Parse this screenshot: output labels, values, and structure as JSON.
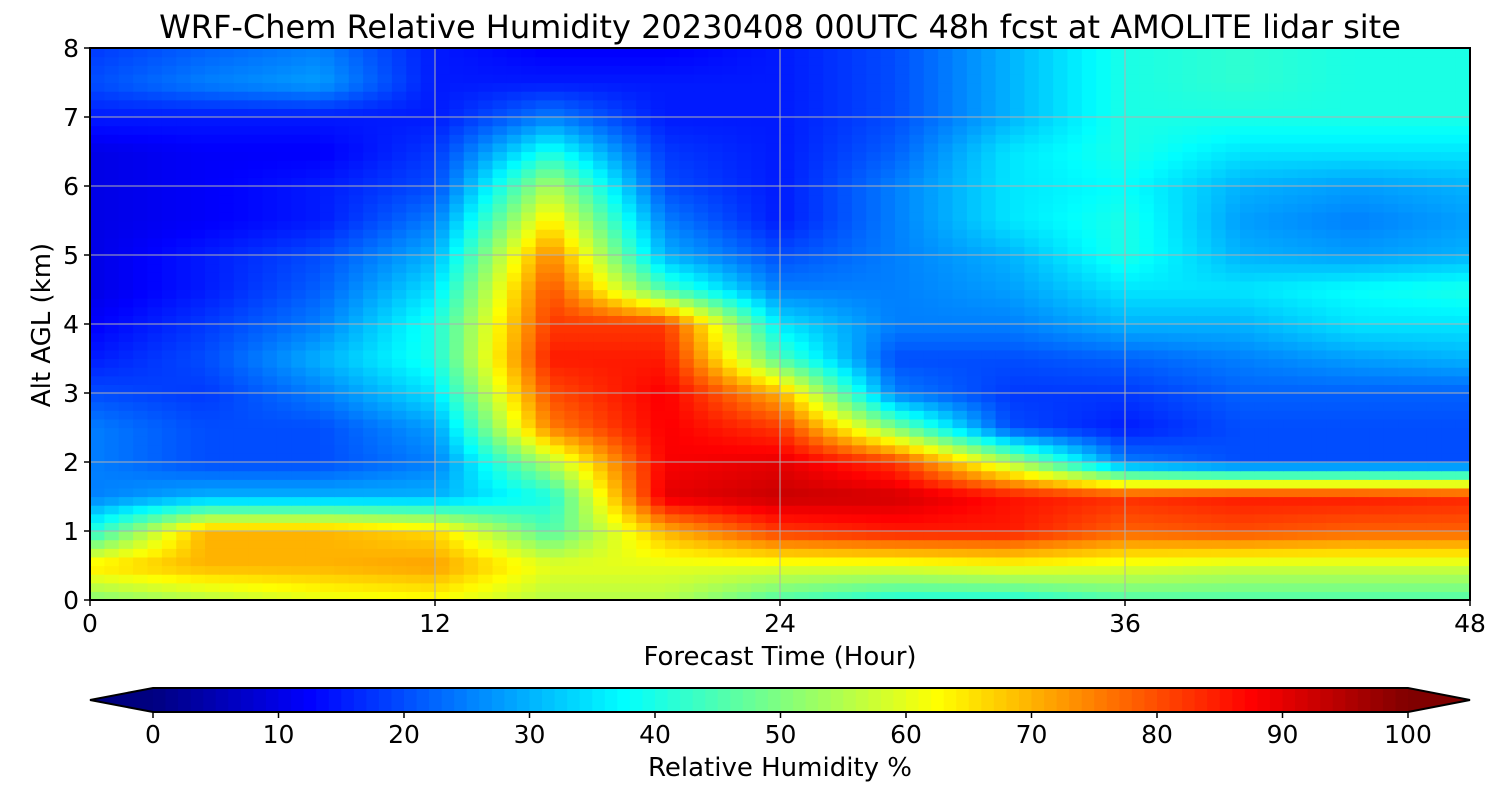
{
  "chart_data": {
    "type": "heatmap",
    "title": "WRF-Chem Relative Humidity 20230408 00UTC 48h fcst at AMOLITE lidar site",
    "xlabel": "Forecast Time (Hour)",
    "ylabel": "Alt AGL (km)",
    "xlim": [
      0,
      48
    ],
    "ylim": [
      0,
      8
    ],
    "x_ticks": [
      0,
      12,
      24,
      36,
      48
    ],
    "y_ticks": [
      0,
      1,
      2,
      3,
      4,
      5,
      6,
      7,
      8
    ],
    "grid": true,
    "colormap": "jet",
    "colorbar": {
      "label": "Relative Humidity %",
      "min": 0,
      "max": 100,
      "ticks": [
        0,
        10,
        20,
        30,
        40,
        50,
        60,
        70,
        80,
        90,
        100
      ],
      "extend": "both",
      "orientation": "horizontal"
    },
    "x": [
      0,
      4,
      8,
      12,
      16,
      20,
      24,
      28,
      32,
      36,
      40,
      44,
      48
    ],
    "y": [
      0,
      0.5,
      1,
      1.5,
      2,
      2.5,
      3,
      3.5,
      4,
      4.5,
      5,
      5.5,
      6,
      6.5,
      7,
      7.5,
      8
    ],
    "z": [
      [
        50,
        55,
        60,
        62,
        55,
        55,
        45,
        40,
        40,
        45,
        45,
        45,
        45
      ],
      [
        65,
        70,
        70,
        72,
        60,
        60,
        60,
        60,
        62,
        60,
        58,
        58,
        58
      ],
      [
        40,
        70,
        70,
        66,
        45,
        70,
        82,
        85,
        85,
        78,
        80,
        78,
        78
      ],
      [
        25,
        30,
        30,
        30,
        40,
        90,
        93,
        92,
        86,
        83,
        85,
        85,
        84
      ],
      [
        25,
        20,
        20,
        25,
        55,
        88,
        90,
        82,
        55,
        25,
        20,
        20,
        20
      ],
      [
        25,
        20,
        20,
        28,
        75,
        88,
        82,
        50,
        20,
        15,
        20,
        20,
        20
      ],
      [
        20,
        18,
        25,
        35,
        80,
        88,
        70,
        25,
        18,
        18,
        22,
        22,
        22
      ],
      [
        15,
        20,
        30,
        40,
        85,
        85,
        45,
        20,
        20,
        22,
        25,
        28,
        30
      ],
      [
        12,
        18,
        25,
        40,
        82,
        82,
        35,
        25,
        25,
        30,
        30,
        35,
        35
      ],
      [
        10,
        15,
        22,
        35,
        80,
        45,
        25,
        25,
        28,
        35,
        35,
        38,
        40
      ],
      [
        10,
        15,
        20,
        30,
        75,
        30,
        20,
        25,
        30,
        40,
        30,
        28,
        30
      ],
      [
        10,
        12,
        15,
        25,
        65,
        25,
        15,
        25,
        35,
        40,
        28,
        25,
        28
      ],
      [
        10,
        12,
        15,
        20,
        55,
        20,
        15,
        25,
        35,
        38,
        30,
        28,
        30
      ],
      [
        10,
        12,
        12,
        18,
        40,
        18,
        15,
        22,
        35,
        40,
        35,
        35,
        35
      ],
      [
        15,
        15,
        15,
        15,
        25,
        15,
        15,
        20,
        30,
        40,
        40,
        40,
        40
      ],
      [
        20,
        25,
        28,
        15,
        15,
        15,
        15,
        20,
        30,
        40,
        42,
        40,
        40
      ],
      [
        18,
        22,
        25,
        15,
        12,
        12,
        15,
        20,
        30,
        40,
        42,
        40,
        40
      ]
    ]
  }
}
